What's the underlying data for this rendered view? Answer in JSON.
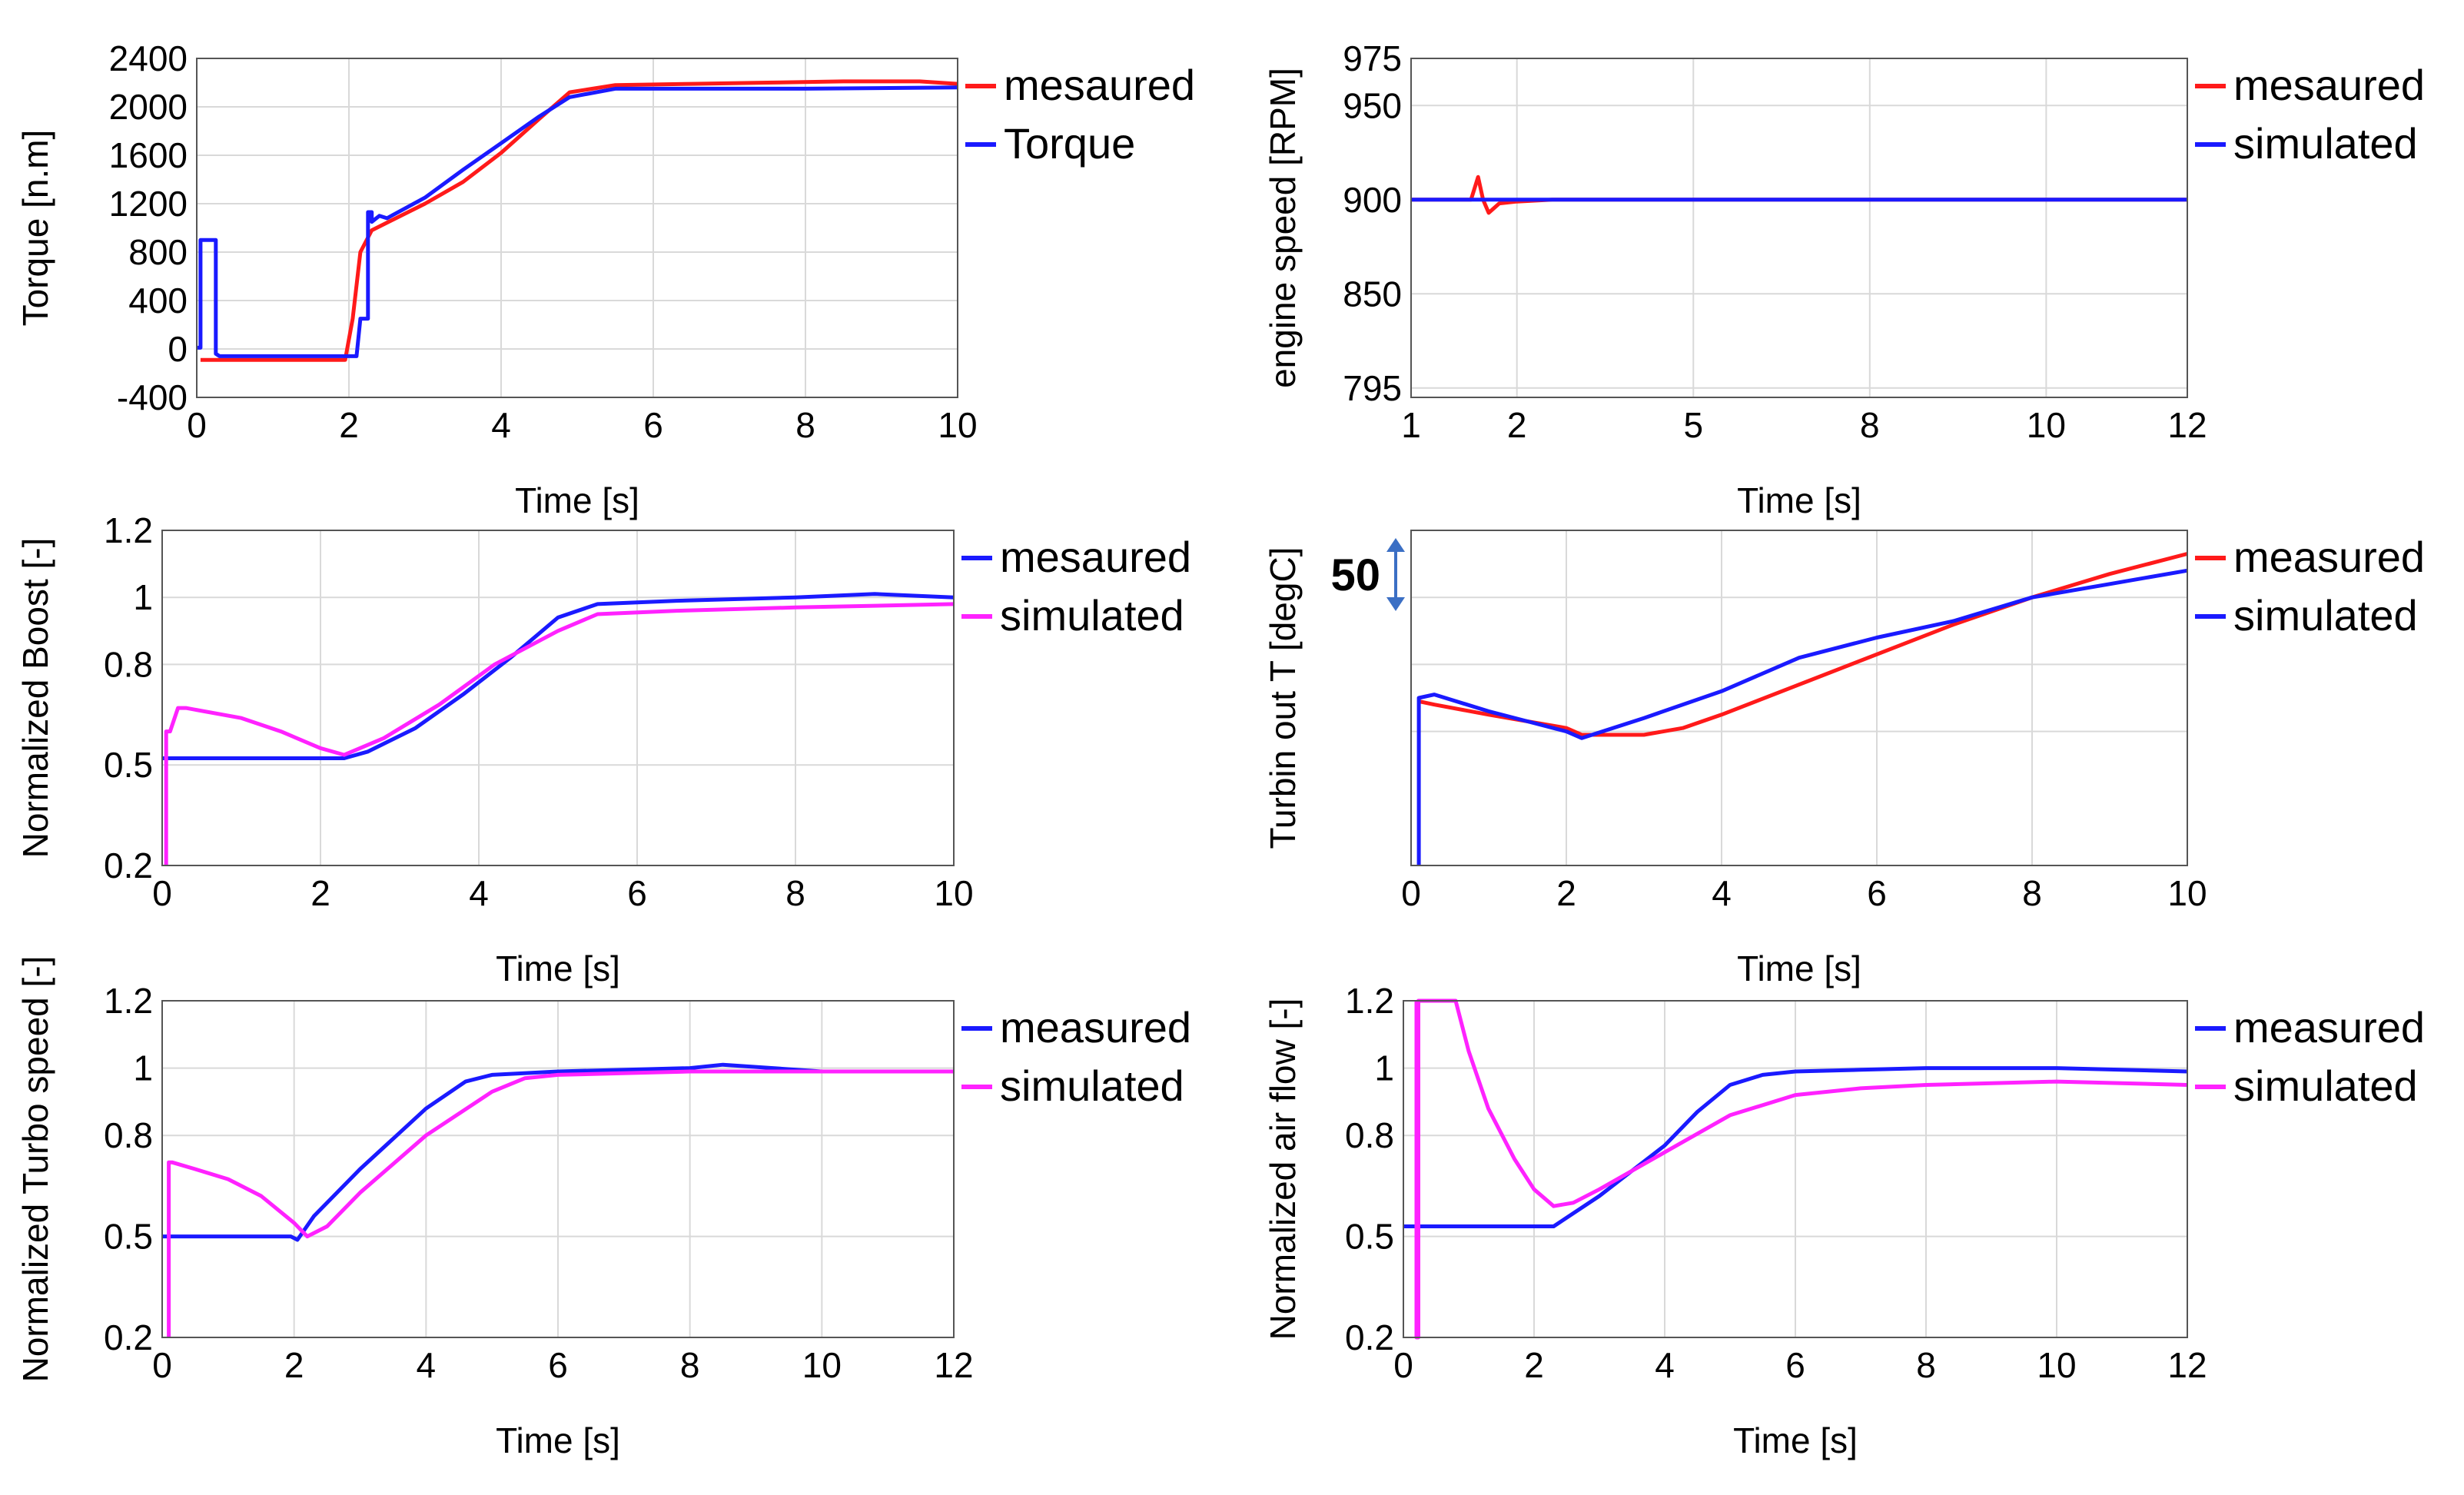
{
  "chart_data": [
    {
      "type": "line",
      "id": "torque",
      "xlabel": "Time [s]",
      "ylabel": "Torque [n.m]",
      "xlim": [
        0,
        10
      ],
      "ylim": [
        -400,
        2400
      ],
      "xticks": [
        0,
        2,
        4,
        6,
        8,
        10
      ],
      "yticks": [
        -400,
        0,
        400,
        800,
        1200,
        1600,
        2000,
        2400
      ],
      "grid": true,
      "legend_position": "right-top",
      "series": [
        {
          "name": "mesaured",
          "color": "#ff1a1a",
          "x": [
            0.05,
            1.95,
            2.05,
            2.15,
            2.3,
            3.0,
            3.5,
            4.0,
            4.5,
            4.9,
            5.5,
            6.5,
            7.5,
            8.5,
            9.5,
            10.0
          ],
          "y": [
            -90,
            -90,
            250,
            800,
            980,
            1200,
            1380,
            1620,
            1900,
            2120,
            2180,
            2190,
            2200,
            2210,
            2210,
            2190
          ]
        },
        {
          "name": "Torque",
          "color": "#1a1aff",
          "x": [
            0.0,
            0.05,
            0.05,
            0.25,
            0.25,
            0.3,
            2.1,
            2.15,
            2.25,
            2.25,
            2.3,
            2.3,
            2.4,
            2.5,
            3.0,
            3.5,
            4.0,
            4.5,
            4.9,
            5.5,
            6.5,
            8.0,
            10.0
          ],
          "y": [
            10,
            10,
            900,
            900,
            -40,
            -60,
            -60,
            250,
            250,
            1130,
            1130,
            1050,
            1100,
            1080,
            1250,
            1480,
            1700,
            1920,
            2080,
            2150,
            2150,
            2150,
            2160
          ]
        }
      ]
    },
    {
      "type": "line",
      "id": "engine_speed",
      "xlabel": "Time [s]",
      "ylabel": "engine speed [RPM]",
      "xlim": [
        1,
        12
      ],
      "ylim": [
        795,
        975
      ],
      "xticks": [
        1,
        2,
        5,
        8,
        10,
        12
      ],
      "xtick_positions": [
        1,
        2.5,
        5,
        7.5,
        10,
        12
      ],
      "yticks": [
        795,
        850,
        900,
        950,
        975
      ],
      "ytick_positions": [
        800,
        850,
        900,
        950,
        975
      ],
      "grid": true,
      "legend_position": "right-top",
      "series": [
        {
          "name": "mesaured",
          "color": "#ff1a1a",
          "x": [
            1.0,
            1.85,
            1.95,
            2.02,
            2.1,
            2.25,
            2.5,
            3.0,
            12.0
          ],
          "y": [
            900,
            900,
            912,
            900,
            893,
            898,
            899,
            900,
            900
          ]
        },
        {
          "name": "simulated",
          "color": "#1a1aff",
          "x": [
            1.0,
            12.0
          ],
          "y": [
            900,
            900
          ]
        }
      ]
    },
    {
      "type": "line",
      "id": "boost",
      "xlabel": "Time [s]",
      "ylabel": "Normalized Boost [-]",
      "xlim": [
        0,
        10
      ],
      "ylim": [
        0.2,
        1.2
      ],
      "xticks": [
        0,
        2,
        4,
        6,
        8,
        10
      ],
      "yticks": [
        0.2,
        0.5,
        0.8,
        1.0,
        1.2
      ],
      "ytick_positions": [
        0.2,
        0.5,
        0.8,
        1.0,
        1.2
      ],
      "grid": true,
      "legend_position": "right-top",
      "series": [
        {
          "name": "mesaured",
          "color": "#1a1aff",
          "x": [
            0.0,
            2.3,
            2.6,
            3.2,
            3.8,
            4.4,
            5.0,
            5.5,
            6.5,
            8.0,
            9.0,
            10.0
          ],
          "y": [
            0.52,
            0.52,
            0.54,
            0.61,
            0.71,
            0.82,
            0.94,
            0.98,
            0.99,
            1.0,
            1.01,
            1.0
          ]
        },
        {
          "name": "simulated",
          "color": "#ff22ff",
          "x": [
            0.05,
            0.05,
            0.1,
            0.2,
            0.3,
            1.0,
            1.5,
            2.0,
            2.3,
            2.8,
            3.5,
            4.2,
            5.0,
            5.5,
            6.5,
            8.0,
            10.0
          ],
          "y": [
            0.2,
            0.6,
            0.6,
            0.67,
            0.67,
            0.64,
            0.6,
            0.55,
            0.53,
            0.58,
            0.68,
            0.8,
            0.9,
            0.95,
            0.96,
            0.97,
            0.98
          ]
        }
      ]
    },
    {
      "type": "line",
      "id": "turbine_out_temperature",
      "xlabel": "Time [s]",
      "ylabel": "Turbin out T [degC]",
      "annotation": "50",
      "annotation_meaning": "vertical span of 50 degC",
      "xlim": [
        0,
        10
      ],
      "ylim": [
        0,
        100
      ],
      "xticks": [
        0,
        2,
        4,
        6,
        8,
        10
      ],
      "yticks": [],
      "grid": true,
      "legend_position": "right-top",
      "series": [
        {
          "name": "measured",
          "color": "#ff1a1a",
          "x": [
            0.1,
            0.3,
            1.0,
            2.0,
            2.2,
            3.0,
            3.5,
            4.0,
            5.0,
            6.0,
            7.0,
            8.0,
            9.0,
            10.0
          ],
          "y": [
            49,
            48,
            45,
            41,
            39,
            39,
            41,
            45,
            54,
            63,
            72,
            80,
            87,
            93
          ]
        },
        {
          "name": "simulated",
          "color": "#1a1aff",
          "x": [
            0.1,
            0.1,
            0.3,
            1.0,
            1.5,
            2.0,
            2.2,
            3.0,
            4.0,
            5.0,
            6.0,
            7.0,
            8.0,
            9.0,
            10.0
          ],
          "y": [
            0,
            50,
            51,
            46,
            43,
            40,
            38,
            44,
            52,
            62,
            68,
            73,
            80,
            84,
            88
          ]
        }
      ]
    },
    {
      "type": "line",
      "id": "turbo_speed",
      "xlabel": "Time [s]",
      "ylabel": "Normalized Turbo speed [-]",
      "xlim": [
        0,
        12
      ],
      "ylim": [
        0.2,
        1.2
      ],
      "xticks": [
        0,
        2,
        4,
        6,
        8,
        10,
        12
      ],
      "yticks": [
        0.2,
        0.5,
        0.8,
        1.0,
        1.2
      ],
      "ytick_positions": [
        0.2,
        0.5,
        0.8,
        1.0,
        1.2
      ],
      "grid": true,
      "legend_position": "right-top",
      "series": [
        {
          "name": "measured",
          "color": "#1a1aff",
          "x": [
            0.0,
            1.95,
            2.05,
            2.3,
            3.0,
            4.0,
            4.6,
            5.0,
            6.0,
            8.0,
            8.5,
            10.0,
            12.0
          ],
          "y": [
            0.5,
            0.5,
            0.49,
            0.56,
            0.7,
            0.88,
            0.96,
            0.98,
            0.99,
            1.0,
            1.01,
            0.99,
            0.99
          ]
        },
        {
          "name": "simulated",
          "color": "#ff22ff",
          "x": [
            0.1,
            0.1,
            0.15,
            0.5,
            1.0,
            1.5,
            2.0,
            2.2,
            2.5,
            3.0,
            4.0,
            5.0,
            5.5,
            6.0,
            8.0,
            10.0,
            12.0
          ],
          "y": [
            0.2,
            0.72,
            0.72,
            0.7,
            0.67,
            0.62,
            0.54,
            0.5,
            0.53,
            0.63,
            0.8,
            0.93,
            0.97,
            0.98,
            0.99,
            0.99,
            0.99
          ]
        }
      ]
    },
    {
      "type": "line",
      "id": "air_flow",
      "xlabel": "Time [s]",
      "ylabel": "Normalized air flow [-]",
      "xlim": [
        0,
        12
      ],
      "ylim": [
        0.2,
        1.2
      ],
      "xticks": [
        0,
        2,
        4,
        6,
        8,
        10,
        12
      ],
      "yticks": [
        0.2,
        0.5,
        0.8,
        1.0,
        1.2
      ],
      "ytick_positions": [
        0.2,
        0.5,
        0.8,
        1.0,
        1.2
      ],
      "grid": true,
      "legend_position": "right-top",
      "series": [
        {
          "name": "measured",
          "color": "#1a1aff",
          "x": [
            0.0,
            2.3,
            3.0,
            4.0,
            4.5,
            5.0,
            5.5,
            6.0,
            7.0,
            8.0,
            9.0,
            10.0,
            12.0
          ],
          "y": [
            0.53,
            0.53,
            0.62,
            0.77,
            0.87,
            0.95,
            0.98,
            0.99,
            0.995,
            1.0,
            1.0,
            1.0,
            0.99
          ]
        },
        {
          "name": "simulated",
          "color": "#ff22ff",
          "x": [
            0.2,
            0.2,
            0.23,
            0.23,
            0.8,
            1.0,
            1.3,
            1.7,
            2.0,
            2.3,
            2.6,
            3.0,
            4.0,
            5.0,
            6.0,
            7.0,
            8.0,
            10.0,
            12.0
          ],
          "y": [
            1.2,
            0.2,
            0.2,
            1.2,
            1.2,
            1.05,
            0.88,
            0.73,
            0.64,
            0.59,
            0.6,
            0.64,
            0.75,
            0.86,
            0.92,
            0.94,
            0.95,
            0.96,
            0.95
          ]
        }
      ]
    }
  ]
}
